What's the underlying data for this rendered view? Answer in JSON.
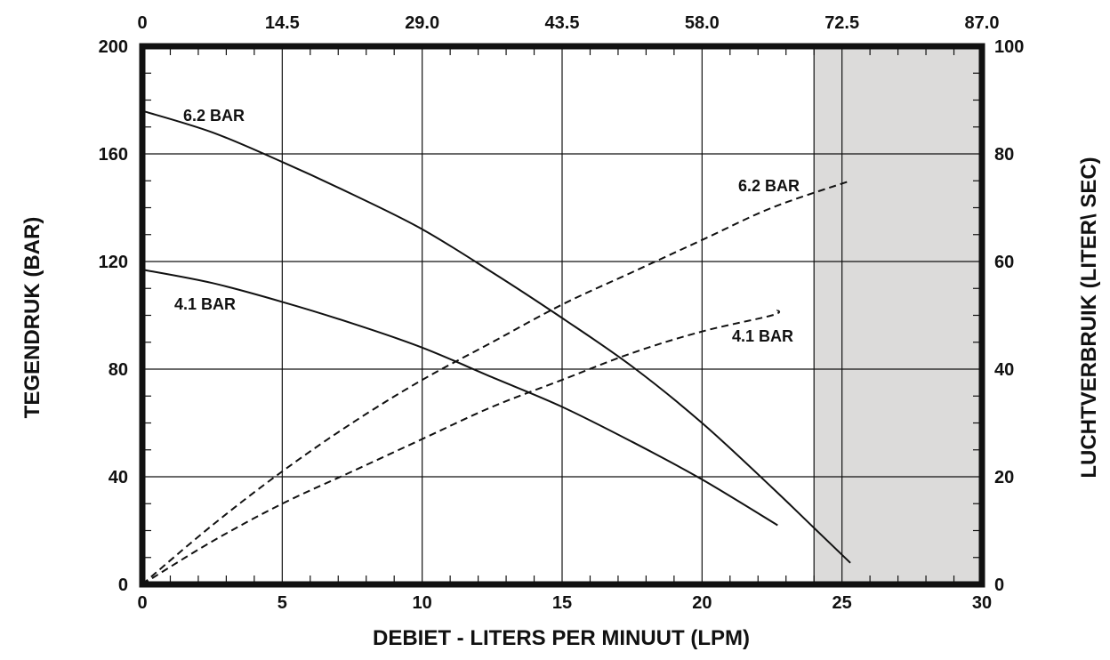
{
  "chart_data": {
    "type": "line",
    "x_axis": {
      "label": "DEBIET - LITERS PER MINUUT (LPM)",
      "range": [
        0,
        30
      ],
      "ticks": [
        "0",
        "5",
        "10",
        "15",
        "20",
        "25",
        "30"
      ]
    },
    "x_top_axis": {
      "ticks": [
        "0",
        "14.5",
        "29.0",
        "43.5",
        "58.0",
        "72.5",
        "87.0"
      ]
    },
    "y_left_axis": {
      "label": "TEGENDRUK (BAR)",
      "range": [
        0,
        200
      ],
      "ticks": [
        "0",
        "40",
        "80",
        "120",
        "160",
        "200"
      ]
    },
    "y_right_axis": {
      "label": "LUCHTVERBRUIK (LITER\\ SEC)",
      "range": [
        0,
        100
      ],
      "ticks": [
        "0",
        "20",
        "40",
        "60",
        "80",
        "100"
      ]
    },
    "shaded_region_x": [
      24,
      30
    ],
    "grid": true,
    "series": [
      {
        "name": "6.2 BAR",
        "axis": "left",
        "style": "solid",
        "points": [
          [
            0,
            176
          ],
          [
            2.5,
            168
          ],
          [
            5,
            157
          ],
          [
            7.5,
            145
          ],
          [
            10,
            132
          ],
          [
            12.5,
            116
          ],
          [
            15,
            99
          ],
          [
            17.5,
            81
          ],
          [
            20,
            60
          ],
          [
            22.5,
            36
          ],
          [
            24,
            21
          ],
          [
            25.3,
            8
          ]
        ]
      },
      {
        "name": "4.1 BAR",
        "axis": "left",
        "style": "solid",
        "points": [
          [
            0,
            117
          ],
          [
            2.5,
            112
          ],
          [
            5,
            105
          ],
          [
            7.5,
            97
          ],
          [
            10,
            88
          ],
          [
            12.5,
            77
          ],
          [
            15,
            66
          ],
          [
            17.5,
            53
          ],
          [
            20,
            39
          ],
          [
            22.7,
            22
          ]
        ]
      },
      {
        "name": "6.2 BAR",
        "axis": "right",
        "style": "dashed",
        "points": [
          [
            0,
            0
          ],
          [
            2.5,
            11
          ],
          [
            5,
            21
          ],
          [
            7.5,
            30
          ],
          [
            10,
            38
          ],
          [
            12.5,
            45
          ],
          [
            15,
            52
          ],
          [
            17.5,
            58
          ],
          [
            20,
            64
          ],
          [
            22.5,
            70
          ],
          [
            25.3,
            75
          ]
        ]
      },
      {
        "name": "4.1 BAR",
        "axis": "right",
        "style": "dashed",
        "points": [
          [
            0,
            0
          ],
          [
            2.5,
            8
          ],
          [
            5,
            15
          ],
          [
            7.5,
            21
          ],
          [
            10,
            27
          ],
          [
            12.5,
            33
          ],
          [
            15,
            38
          ],
          [
            17.5,
            43
          ],
          [
            20,
            47
          ],
          [
            22.5,
            50
          ],
          [
            22.7,
            51
          ]
        ]
      }
    ]
  }
}
